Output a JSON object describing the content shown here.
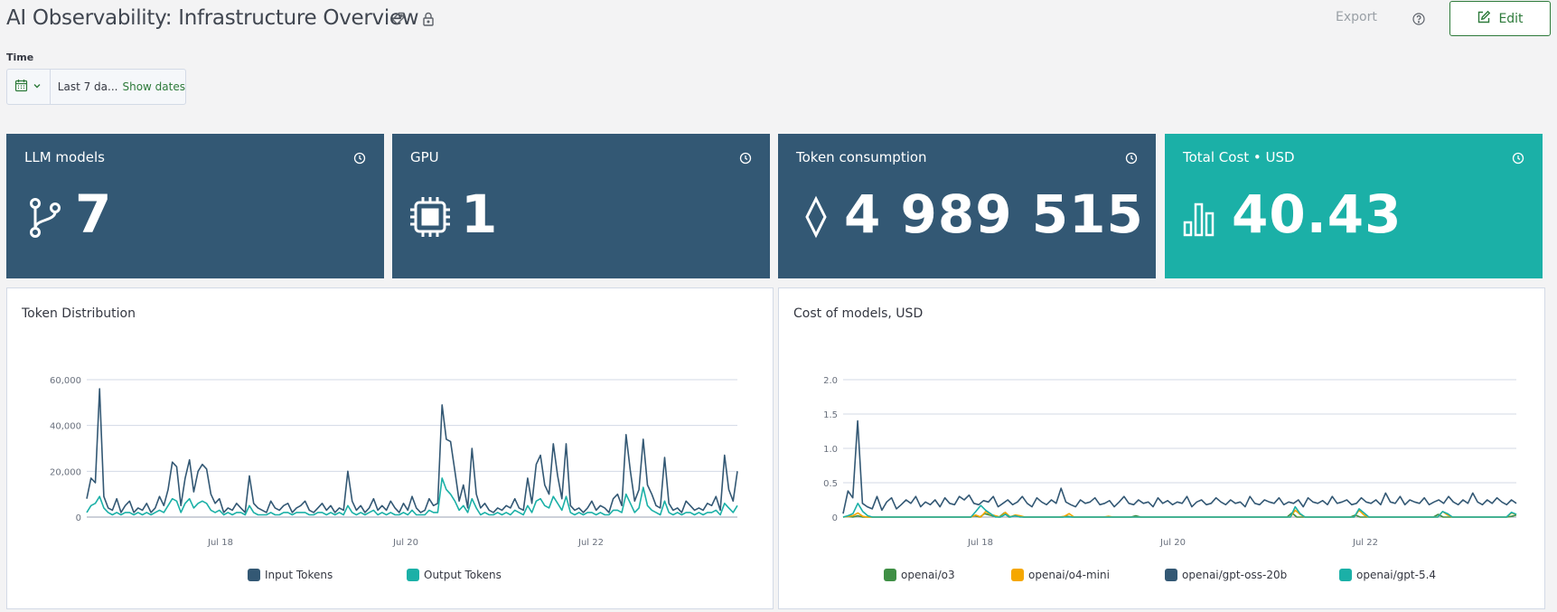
{
  "header": {
    "title": "AI Observability: Infrastructure Overview",
    "tag_icon": "tag-icon",
    "lock_icon": "lock-icon",
    "export_label": "Export",
    "help_icon": "help-circle-icon",
    "edit_label": "Edit",
    "edit_icon": "edit-icon"
  },
  "time": {
    "label": "Time",
    "calendar_icon": "calendar-icon",
    "range_text": "Last 7 da...",
    "show_dates_label": "Show dates"
  },
  "stats": [
    {
      "title": "LLM models",
      "value": "7",
      "icon": "git-branch-icon",
      "color": "#335874"
    },
    {
      "title": "GPU",
      "value": "1",
      "icon": "chip-icon",
      "color": "#335874"
    },
    {
      "title": "Token consumption",
      "value": "4 989 515",
      "icon": "diamond-icon",
      "color": "#335874"
    },
    {
      "title": "Total Cost • USD",
      "value": "40.43",
      "icon": "bar-chart-icon",
      "color": "#1bb0a7"
    }
  ],
  "colors": {
    "navy": "#335874",
    "teal": "#1bb0a7",
    "green": "#3f8f45",
    "orange": "#f5a700",
    "accent": "#2d7a3a"
  },
  "chart_data": [
    {
      "type": "line",
      "title": "Token Distribution",
      "xlabel": "",
      "ylabel": "",
      "x_ticks": [
        "Jul 18",
        "Jul 20",
        "Jul 22"
      ],
      "y_ticks": [
        "0",
        "20,000",
        "40,000",
        "60,000"
      ],
      "ylim": [
        0,
        60000
      ],
      "grid": true,
      "legend": "bottom",
      "series": [
        {
          "name": "Input Tokens",
          "color": "#335874",
          "values": [
            8000,
            17000,
            15000,
            56000,
            9000,
            4000,
            3000,
            8000,
            2000,
            5000,
            7000,
            2000,
            4000,
            3000,
            6000,
            2000,
            4000,
            9000,
            5000,
            12000,
            24000,
            22000,
            5000,
            17000,
            25000,
            11000,
            20000,
            23000,
            21000,
            10000,
            6000,
            8000,
            2000,
            4000,
            3000,
            6000,
            4000,
            2000,
            18000,
            6000,
            4000,
            3000,
            2000,
            7000,
            4000,
            3000,
            5000,
            6000,
            2000,
            4000,
            5000,
            7000,
            3000,
            2000,
            4000,
            6000,
            3000,
            5000,
            2000,
            4000,
            3000,
            20000,
            7000,
            3000,
            5000,
            2000,
            4000,
            8000,
            3000,
            5000,
            3000,
            7000,
            4000,
            2000,
            6000,
            3000,
            9000,
            4000,
            2000,
            3000,
            8000,
            5000,
            6000,
            49000,
            34000,
            33000,
            20000,
            7000,
            14000,
            4000,
            30000,
            10000,
            4000,
            6000,
            3000,
            2000,
            4000,
            3000,
            5000,
            4000,
            8000,
            4000,
            3000,
            17000,
            6000,
            23000,
            27000,
            14000,
            10000,
            32000,
            18000,
            8000,
            32000,
            5000,
            3000,
            4000,
            2000,
            4000,
            7000,
            3000,
            5000,
            4000,
            2000,
            8000,
            10000,
            5000,
            36000,
            20000,
            7000,
            12000,
            34000,
            14000,
            10000,
            5000,
            4000,
            26000,
            6000,
            3000,
            4000,
            2000,
            7000,
            5000,
            3000,
            4000,
            3000,
            6000,
            5000,
            9000,
            3000,
            27000,
            12000,
            7000,
            20000
          ]
        },
        {
          "name": "Output Tokens",
          "color": "#1bb0a7",
          "values": [
            2000,
            5000,
            6000,
            9000,
            4000,
            2000,
            1000,
            2000,
            1000,
            2000,
            2000,
            1000,
            2000,
            1000,
            2000,
            1000,
            2000,
            3000,
            2000,
            5000,
            8000,
            7000,
            2000,
            6000,
            8000,
            4000,
            6000,
            7000,
            6000,
            3000,
            2000,
            3000,
            1000,
            2000,
            1000,
            2000,
            2000,
            1000,
            5000,
            2000,
            1000,
            1000,
            1000,
            2000,
            1000,
            1000,
            2000,
            2000,
            1000,
            2000,
            2000,
            2000,
            1000,
            1000,
            2000,
            2000,
            1000,
            2000,
            1000,
            2000,
            1000,
            5000,
            2000,
            1000,
            2000,
            1000,
            2000,
            3000,
            1000,
            2000,
            1000,
            2000,
            1000,
            1000,
            2000,
            1000,
            3000,
            1000,
            1000,
            1000,
            3000,
            2000,
            2000,
            17000,
            12000,
            10000,
            7000,
            3000,
            5000,
            2000,
            8000,
            4000,
            1000,
            2000,
            1000,
            1000,
            2000,
            1000,
            2000,
            1000,
            3000,
            2000,
            1000,
            5000,
            2000,
            7000,
            8000,
            5000,
            4000,
            9000,
            6000,
            3000,
            9000,
            2000,
            1000,
            2000,
            1000,
            2000,
            2000,
            1000,
            2000,
            1000,
            1000,
            3000,
            3000,
            2000,
            10000,
            6000,
            2000,
            4000,
            13000,
            5000,
            3000,
            2000,
            1000,
            7000,
            2000,
            1000,
            2000,
            1000,
            2000,
            2000,
            1000,
            2000,
            1000,
            2000,
            2000,
            3000,
            1000,
            6000,
            4000,
            2000,
            5000
          ]
        }
      ]
    },
    {
      "type": "line",
      "title": "Cost of models, USD",
      "xlabel": "",
      "ylabel": "",
      "x_ticks": [
        "Jul 18",
        "Jul 20",
        "Jul 22"
      ],
      "y_ticks": [
        "0",
        "0.5",
        "1.0",
        "1.5",
        "2.0"
      ],
      "ylim": [
        0,
        2.0
      ],
      "grid": true,
      "legend": "bottom",
      "series": [
        {
          "name": "openai/o3",
          "color": "#3f8f45",
          "values": [
            0,
            0.01,
            0,
            0.02,
            0,
            0,
            0,
            0,
            0,
            0,
            0,
            0,
            0,
            0,
            0,
            0,
            0,
            0,
            0,
            0,
            0,
            0,
            0,
            0,
            0,
            0,
            0,
            0.02,
            0,
            0.05,
            0.03,
            0.01,
            0,
            0.06,
            0,
            0.02,
            0.01,
            0,
            0,
            0,
            0,
            0,
            0,
            0,
            0,
            0,
            0.01,
            0,
            0,
            0,
            0,
            0,
            0,
            0,
            0,
            0,
            0,
            0,
            0,
            0,
            0.02,
            0,
            0,
            0,
            0,
            0,
            0,
            0,
            0,
            0,
            0,
            0,
            0,
            0,
            0,
            0,
            0,
            0,
            0,
            0,
            0,
            0,
            0,
            0,
            0,
            0,
            0,
            0,
            0,
            0,
            0,
            0,
            0.06,
            0,
            0,
            0,
            0,
            0,
            0,
            0,
            0,
            0,
            0,
            0,
            0,
            0.03,
            0,
            0,
            0,
            0,
            0,
            0,
            0,
            0,
            0,
            0,
            0,
            0,
            0,
            0,
            0,
            0,
            0.04,
            0,
            0,
            0,
            0,
            0,
            0,
            0,
            0,
            0,
            0,
            0,
            0,
            0,
            0,
            0.01,
            0.03
          ]
        },
        {
          "name": "openai/o4-mini",
          "color": "#f5a700",
          "values": [
            0,
            0.01,
            0.02,
            0.06,
            0.01,
            0,
            0,
            0,
            0,
            0,
            0,
            0,
            0,
            0,
            0,
            0,
            0,
            0,
            0,
            0,
            0,
            0,
            0,
            0,
            0,
            0,
            0,
            0.03,
            0,
            0.08,
            0.04,
            0.02,
            0,
            0.07,
            0,
            0.03,
            0.02,
            0,
            0,
            0,
            0,
            0,
            0,
            0,
            0,
            0.01,
            0.05,
            0,
            0,
            0,
            0,
            0,
            0,
            0,
            0.01,
            0,
            0,
            0,
            0,
            0,
            0,
            0,
            0,
            0,
            0,
            0,
            0,
            0,
            0,
            0,
            0,
            0,
            0,
            0,
            0,
            0,
            0,
            0,
            0,
            0,
            0,
            0,
            0,
            0,
            0,
            0,
            0,
            0,
            0,
            0,
            0,
            0,
            0.1,
            0.04,
            0,
            0,
            0,
            0,
            0,
            0,
            0,
            0,
            0,
            0,
            0,
            0.1,
            0.03,
            0,
            0,
            0,
            0,
            0,
            0,
            0,
            0,
            0,
            0,
            0,
            0,
            0,
            0,
            0,
            0.08,
            0.03,
            0,
            0,
            0,
            0,
            0,
            0,
            0,
            0,
            0,
            0,
            0,
            0,
            0.06,
            0.04
          ]
        },
        {
          "name": "openai/gpt-oss-20b",
          "color": "#335874",
          "values": [
            0.05,
            0.38,
            0.28,
            1.4,
            0.2,
            0.15,
            0.12,
            0.3,
            0.1,
            0.22,
            0.28,
            0.12,
            0.18,
            0.25,
            0.2,
            0.3,
            0.15,
            0.22,
            0.18,
            0.25,
            0.15,
            0.28,
            0.2,
            0.18,
            0.3,
            0.25,
            0.32,
            0.2,
            0.18,
            0.24,
            0.22,
            0.3,
            0.15,
            0.2,
            0.25,
            0.18,
            0.22,
            0.3,
            0.2,
            0.15,
            0.28,
            0.22,
            0.18,
            0.25,
            0.2,
            0.42,
            0.22,
            0.18,
            0.15,
            0.25,
            0.2,
            0.22,
            0.28,
            0.18,
            0.2,
            0.24,
            0.15,
            0.22,
            0.3,
            0.2,
            0.18,
            0.25,
            0.2,
            0.22,
            0.15,
            0.28,
            0.2,
            0.24,
            0.18,
            0.22,
            0.2,
            0.3,
            0.15,
            0.22,
            0.25,
            0.18,
            0.2,
            0.28,
            0.22,
            0.18,
            0.25,
            0.2,
            0.22,
            0.15,
            0.3,
            0.2,
            0.18,
            0.25,
            0.22,
            0.2,
            0.28,
            0.18,
            0.22,
            0.2,
            0.25,
            0.15,
            0.28,
            0.22,
            0.2,
            0.24,
            0.18,
            0.3,
            0.2,
            0.22,
            0.25,
            0.18,
            0.2,
            0.28,
            0.22,
            0.2,
            0.25,
            0.18,
            0.35,
            0.22,
            0.2,
            0.3,
            0.18,
            0.25,
            0.22,
            0.2,
            0.28,
            0.18,
            0.22,
            0.25,
            0.2,
            0.3,
            0.22,
            0.18,
            0.25,
            0.2,
            0.35,
            0.22,
            0.18,
            0.25,
            0.2,
            0.28,
            0.22,
            0.18,
            0.25,
            0.2
          ]
        },
        {
          "name": "openai/gpt-5.4",
          "color": "#1bb0a7",
          "values": [
            0,
            0.02,
            0.05,
            0.2,
            0.08,
            0.02,
            0,
            0,
            0,
            0,
            0,
            0,
            0,
            0,
            0,
            0,
            0,
            0,
            0,
            0,
            0,
            0,
            0,
            0,
            0,
            0,
            0,
            0.08,
            0.17,
            0.1,
            0.05,
            0,
            0,
            0.04,
            0,
            0.02,
            0,
            0,
            0,
            0,
            0,
            0,
            0,
            0,
            0,
            0,
            0,
            0,
            0,
            0,
            0,
            0,
            0,
            0,
            0,
            0,
            0,
            0,
            0,
            0,
            0,
            0,
            0,
            0,
            0,
            0,
            0,
            0,
            0,
            0,
            0,
            0,
            0,
            0,
            0,
            0,
            0,
            0,
            0,
            0,
            0,
            0,
            0,
            0,
            0,
            0,
            0,
            0,
            0,
            0,
            0,
            0,
            0.15,
            0.05,
            0,
            0,
            0,
            0,
            0,
            0,
            0,
            0,
            0,
            0,
            0,
            0.12,
            0.06,
            0,
            0,
            0,
            0,
            0,
            0,
            0,
            0,
            0,
            0,
            0,
            0,
            0,
            0,
            0,
            0.08,
            0.05,
            0,
            0,
            0,
            0,
            0,
            0,
            0,
            0,
            0,
            0,
            0,
            0,
            0.07,
            0.04
          ]
        }
      ]
    }
  ]
}
